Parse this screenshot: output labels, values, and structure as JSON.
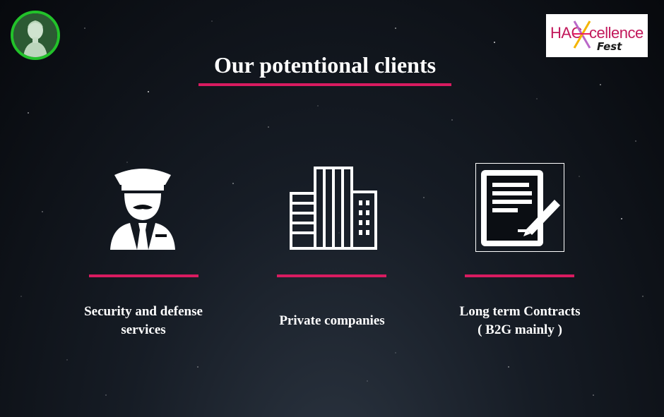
{
  "slide": {
    "title": "Our potentional clients",
    "accent_color": "#d81b60",
    "logo": {
      "text_hac": "HAC",
      "text_cellence": "cellence",
      "text_fest": "Fest"
    }
  },
  "clients": [
    {
      "icon": "security-guard-icon",
      "line1": "Security and defense",
      "line2": "services"
    },
    {
      "icon": "office-buildings-icon",
      "line1": "Private companies",
      "line2": ""
    },
    {
      "icon": "contract-document-icon",
      "line1": "Long term Contracts",
      "line2": "( B2G mainly )"
    }
  ]
}
